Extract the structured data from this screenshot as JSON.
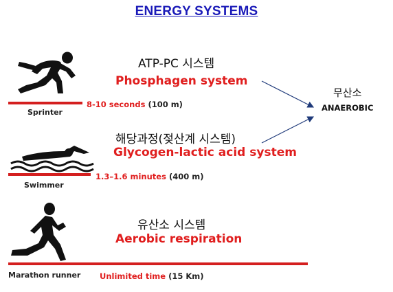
{
  "title": "ENERGY SYSTEMS",
  "systems": [
    {
      "korean": "ATP-PC 시스템",
      "english": "Phosphagen system",
      "duration_red": "8-10 seconds",
      "duration_black": "(100 m)",
      "athlete": "Sprinter"
    },
    {
      "korean": "해당과정(젖산계 시스템)",
      "english": "Glycogen-lactic acid system",
      "duration_red": "1.3–1.6 minutes",
      "duration_black": "(400 m)",
      "athlete": "Swimmer"
    },
    {
      "korean": "유산소 시스템",
      "english": "Aerobic respiration",
      "duration_red": "Unlimited time",
      "duration_black": "(15 Km)",
      "athlete": "Marathon runner"
    }
  ],
  "anaerobic": {
    "korean": "무산소",
    "english": "ANAEROBIC"
  },
  "colors": {
    "title": "#1a1ab8",
    "accent_red": "#e01e1e",
    "bar": "#d41f1f",
    "arrow": "#1f3a7a"
  }
}
